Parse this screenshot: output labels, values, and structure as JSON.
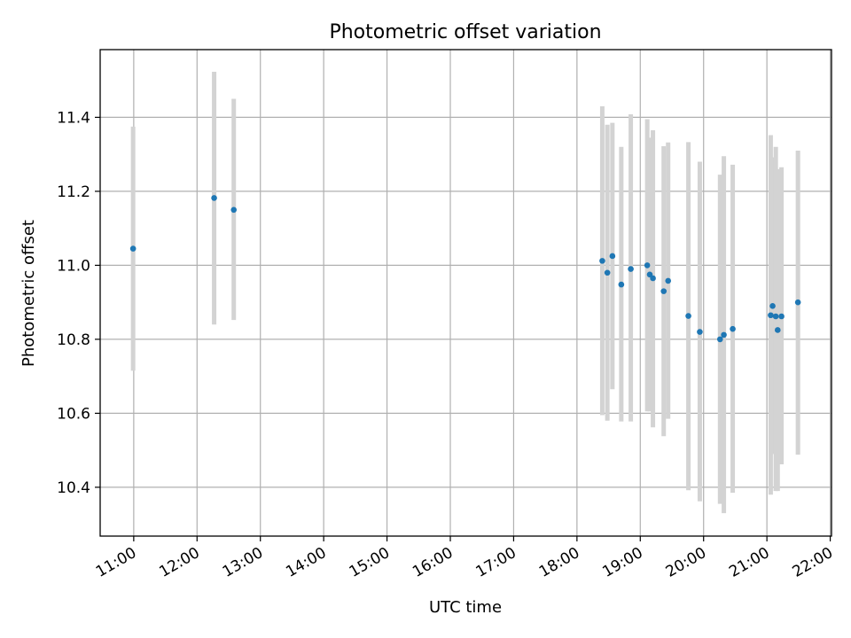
{
  "chart_data": {
    "type": "scatter",
    "title": "Photometric offset variation",
    "xlabel": "UTC time",
    "ylabel": "Photometric offset",
    "xlim": [
      10.47,
      22.02
    ],
    "ylim": [
      10.268,
      11.583
    ],
    "grid": true,
    "x_tick_labels": [
      "11:00",
      "12:00",
      "13:00",
      "14:00",
      "15:00",
      "16:00",
      "17:00",
      "18:00",
      "19:00",
      "20:00",
      "21:00",
      "22:00"
    ],
    "x_tick_values": [
      11,
      12,
      13,
      14,
      15,
      16,
      17,
      18,
      19,
      20,
      21,
      22
    ],
    "y_tick_labels": [
      "10.4",
      "10.6",
      "10.8",
      "11.0",
      "11.2",
      "11.4"
    ],
    "y_tick_values": [
      10.4,
      10.6,
      10.8,
      11.0,
      11.2,
      11.4
    ],
    "marker_color": "#1f77b4",
    "errorbar_color": "#d3d3d3",
    "points": [
      {
        "x": 10.99,
        "y": 11.045,
        "err_low": 10.715,
        "err_high": 11.375
      },
      {
        "x": 12.27,
        "y": 11.182,
        "err_low": 10.84,
        "err_high": 11.523
      },
      {
        "x": 12.58,
        "y": 11.15,
        "err_low": 10.852,
        "err_high": 11.45
      },
      {
        "x": 18.4,
        "y": 11.012,
        "err_low": 10.595,
        "err_high": 11.43
      },
      {
        "x": 18.48,
        "y": 10.98,
        "err_low": 10.58,
        "err_high": 11.38
      },
      {
        "x": 18.56,
        "y": 11.025,
        "err_low": 10.665,
        "err_high": 11.385
      },
      {
        "x": 18.7,
        "y": 10.948,
        "err_low": 10.578,
        "err_high": 11.32
      },
      {
        "x": 18.85,
        "y": 10.99,
        "err_low": 10.578,
        "err_high": 11.408
      },
      {
        "x": 19.11,
        "y": 11.0,
        "err_low": 10.605,
        "err_high": 11.395
      },
      {
        "x": 19.15,
        "y": 10.975,
        "err_low": 10.605,
        "err_high": 11.345
      },
      {
        "x": 19.2,
        "y": 10.965,
        "err_low": 10.562,
        "err_high": 11.365
      },
      {
        "x": 19.37,
        "y": 10.93,
        "err_low": 10.538,
        "err_high": 11.322
      },
      {
        "x": 19.44,
        "y": 10.958,
        "err_low": 10.585,
        "err_high": 11.332
      },
      {
        "x": 19.76,
        "y": 10.863,
        "err_low": 10.392,
        "err_high": 11.333
      },
      {
        "x": 19.94,
        "y": 10.82,
        "err_low": 10.362,
        "err_high": 11.28
      },
      {
        "x": 20.26,
        "y": 10.8,
        "err_low": 10.355,
        "err_high": 11.245
      },
      {
        "x": 20.32,
        "y": 10.812,
        "err_low": 10.33,
        "err_high": 11.295
      },
      {
        "x": 20.46,
        "y": 10.828,
        "err_low": 10.385,
        "err_high": 11.272
      },
      {
        "x": 21.06,
        "y": 10.865,
        "err_low": 10.38,
        "err_high": 11.352
      },
      {
        "x": 21.09,
        "y": 10.89,
        "err_low": 10.49,
        "err_high": 11.292
      },
      {
        "x": 21.14,
        "y": 10.862,
        "err_low": 10.39,
        "err_high": 11.32
      },
      {
        "x": 21.17,
        "y": 10.825,
        "err_low": 10.39,
        "err_high": 11.26
      },
      {
        "x": 21.23,
        "y": 10.862,
        "err_low": 10.462,
        "err_high": 11.265
      },
      {
        "x": 21.49,
        "y": 10.9,
        "err_low": 10.488,
        "err_high": 11.31
      }
    ]
  }
}
